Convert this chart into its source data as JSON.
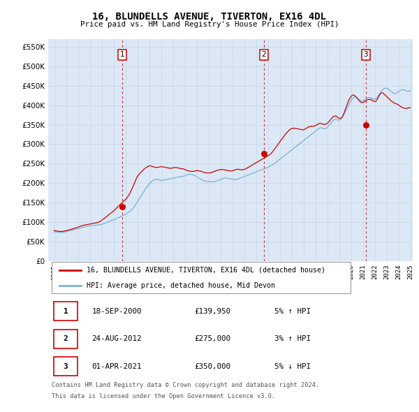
{
  "title": "16, BLUNDELLS AVENUE, TIVERTON, EX16 4DL",
  "subtitle": "Price paid vs. HM Land Registry's House Price Index (HPI)",
  "ylabel_values": [
    0,
    50000,
    100000,
    150000,
    200000,
    250000,
    300000,
    350000,
    400000,
    450000,
    500000,
    550000
  ],
  "ylim": [
    0,
    570000
  ],
  "x_start_year": 1995,
  "x_end_year": 2025,
  "grid_color": "#c8d8e8",
  "plot_bg_color": "#dce8f5",
  "fig_bg_color": "#ffffff",
  "hpi_line_color": "#7ab0d8",
  "price_line_color": "#cc0000",
  "legend1_label": "16, BLUNDELLS AVENUE, TIVERTON, EX16 4DL (detached house)",
  "legend2_label": "HPI: Average price, detached house, Mid Devon",
  "sales": [
    {
      "num": 1,
      "date": "18-SEP-2000",
      "price": 139950,
      "hpi_pct": "5% ↑ HPI",
      "year": 2000.72
    },
    {
      "num": 2,
      "date": "24-AUG-2012",
      "price": 275000,
      "hpi_pct": "3% ↑ HPI",
      "year": 2012.65
    },
    {
      "num": 3,
      "date": "01-APR-2021",
      "price": 350000,
      "hpi_pct": "5% ↓ HPI",
      "year": 2021.25
    }
  ],
  "footer_line1": "Contains HM Land Registry data © Crown copyright and database right 2024.",
  "footer_line2": "This data is licensed under the Open Government Licence v3.0.",
  "hpi_data_months": {
    "start_year": 1995,
    "start_month": 1,
    "values": [
      75000,
      74500,
      74200,
      74000,
      73800,
      73600,
      73400,
      73200,
      73000,
      73200,
      73800,
      74200,
      75000,
      75500,
      76000,
      76800,
      77500,
      78200,
      78800,
      79500,
      80200,
      80800,
      81200,
      81800,
      82500,
      83200,
      84000,
      84800,
      85500,
      86200,
      87000,
      87500,
      88000,
      88500,
      89000,
      89500,
      90000,
      90200,
      90500,
      90800,
      91000,
      91200,
      91500,
      91800,
      92000,
      92300,
      92700,
      93200,
      93800,
      94500,
      95500,
      96500,
      97500,
      98500,
      99500,
      100500,
      101500,
      102500,
      103500,
      104500,
      105000,
      106000,
      107200,
      108500,
      109800,
      111000,
      112200,
      113500,
      114800,
      116000,
      117200,
      118500,
      120000,
      121500,
      123000,
      124500,
      126000,
      128000,
      130500,
      133000,
      136000,
      139500,
      143000,
      147000,
      151000,
      155000,
      159000,
      163000,
      167000,
      171000,
      175000,
      179000,
      183000,
      187000,
      190500,
      194000,
      197000,
      200000,
      202500,
      205000,
      207000,
      208500,
      209500,
      210000,
      210000,
      209500,
      208500,
      207500,
      207000,
      207200,
      207500,
      208000,
      208500,
      209000,
      209500,
      210000,
      210500,
      211000,
      211500,
      212000,
      212500,
      213000,
      213500,
      214000,
      214500,
      215000,
      215500,
      216000,
      216500,
      217000,
      217500,
      218000,
      218500,
      219500,
      220500,
      221500,
      222500,
      223000,
      222500,
      222000,
      221000,
      220000,
      219000,
      218000,
      216500,
      215000,
      213500,
      212000,
      210500,
      209000,
      207500,
      206000,
      205000,
      204500,
      204000,
      203800,
      203500,
      203200,
      203000,
      203000,
      203200,
      203500,
      204000,
      204500,
      205000,
      206000,
      207000,
      208000,
      209000,
      210000,
      211000,
      212000,
      213000,
      213500,
      213000,
      212500,
      212000,
      211500,
      211000,
      210500,
      210000,
      209500,
      209000,
      209000,
      209500,
      210000,
      210500,
      211500,
      212500,
      213500,
      214500,
      215500,
      216500,
      217500,
      218500,
      219500,
      220500,
      221500,
      222500,
      223500,
      224500,
      225500,
      226500,
      227500,
      228500,
      229500,
      230500,
      231500,
      232500,
      233500,
      234500,
      235500,
      236500,
      237500,
      238500,
      239500,
      240500,
      241500,
      243000,
      244500,
      246000,
      247500,
      249000,
      251000,
      253000,
      255000,
      257000,
      259000,
      261000,
      263000,
      265000,
      267000,
      269000,
      271000,
      273000,
      275000,
      277000,
      279000,
      281000,
      283000,
      285000,
      287000,
      289000,
      291000,
      293000,
      295000,
      297000,
      299000,
      301000,
      303000,
      305000,
      307000,
      309000,
      311000,
      313000,
      315000,
      317000,
      319000,
      321000,
      323000,
      325000,
      327000,
      329000,
      331000,
      333000,
      335000,
      337000,
      339000,
      341000,
      342000,
      342000,
      341000,
      340000,
      339500,
      340000,
      341000,
      343000,
      346000,
      349000,
      352000,
      355000,
      358000,
      361000,
      363000,
      364000,
      364000,
      363000,
      362000,
      362000,
      363000,
      365000,
      368000,
      372000,
      377000,
      382000,
      387000,
      392000,
      397000,
      402000,
      407000,
      412000,
      416000,
      419000,
      421000,
      422000,
      421000,
      419000,
      417000,
      415000,
      413000,
      412000,
      411000,
      411000,
      412000,
      414000,
      416000,
      418000,
      419000,
      420000,
      420000,
      419000,
      418000,
      417000,
      416000,
      416000,
      417000,
      419000,
      422000,
      426000,
      430000,
      434000,
      437000,
      440000,
      442000,
      443000,
      444000,
      444000,
      443000,
      441000,
      439000,
      437000,
      435000,
      433000,
      431000,
      430000,
      430000,
      431000,
      433000,
      435000,
      437000,
      438000,
      439000,
      440000,
      440000,
      439000,
      438000,
      437000,
      436000,
      436000,
      437000,
      438000
    ]
  },
  "price_data_months": {
    "start_year": 1995,
    "start_month": 1,
    "values": [
      78000,
      77500,
      77000,
      76500,
      76000,
      75800,
      75600,
      75500,
      75600,
      76000,
      76500,
      77000,
      77500,
      78000,
      78800,
      79500,
      80200,
      81000,
      81800,
      82500,
      83200,
      84000,
      84800,
      85500,
      86500,
      87500,
      88500,
      89500,
      90500,
      91000,
      91500,
      92000,
      92500,
      93000,
      93500,
      94000,
      94500,
      95000,
      95500,
      96000,
      96500,
      97000,
      97500,
      98000,
      98800,
      99800,
      101000,
      102500,
      104000,
      106000,
      108000,
      110000,
      112000,
      114000,
      116000,
      118000,
      120000,
      122000,
      124000,
      126000,
      128000,
      130500,
      133000,
      135500,
      138000,
      140500,
      143000,
      145500,
      148000,
      150500,
      153000,
      155500,
      157000,
      160000,
      163500,
      167000,
      171000,
      176000,
      181500,
      187000,
      193000,
      199000,
      205000,
      211000,
      216000,
      220000,
      223000,
      226000,
      228500,
      231000,
      233500,
      236000,
      238000,
      240000,
      241500,
      243000,
      244000,
      244500,
      244000,
      243000,
      242000,
      241000,
      240500,
      240000,
      240000,
      240500,
      241000,
      241500,
      242000,
      242000,
      241500,
      241000,
      240500,
      240000,
      239500,
      239000,
      238500,
      238000,
      238000,
      238500,
      239000,
      239500,
      240000,
      240000,
      239500,
      239000,
      238500,
      238000,
      237500,
      237000,
      236500,
      236000,
      235000,
      234000,
      233000,
      232000,
      231000,
      230500,
      230000,
      230000,
      230000,
      230500,
      231000,
      231500,
      232000,
      232000,
      231500,
      231000,
      230500,
      230000,
      229000,
      228000,
      227000,
      226500,
      226000,
      226000,
      226000,
      226000,
      226500,
      227000,
      228000,
      229000,
      230000,
      231000,
      232000,
      233000,
      233500,
      234000,
      234500,
      235000,
      235000,
      234500,
      234000,
      233500,
      233000,
      232500,
      232000,
      231500,
      231000,
      231000,
      231500,
      232000,
      233000,
      234000,
      235000,
      235500,
      235500,
      235000,
      234500,
      234000,
      234000,
      234500,
      235000,
      236000,
      237000,
      238500,
      240000,
      241500,
      243000,
      244500,
      246000,
      247500,
      249000,
      250500,
      252000,
      253500,
      255000,
      256500,
      258000,
      259500,
      261000,
      262500,
      264000,
      265500,
      267000,
      268500,
      270000,
      271500,
      273500,
      275500,
      278000,
      281000,
      284500,
      288000,
      291500,
      295000,
      298500,
      302000,
      305500,
      309000,
      312500,
      316000,
      319500,
      323000,
      326000,
      329000,
      332000,
      334500,
      337000,
      339000,
      340000,
      340500,
      341000,
      341000,
      340500,
      340000,
      339500,
      339000,
      338500,
      338000,
      337500,
      337000,
      337000,
      338000,
      339500,
      341000,
      342500,
      344000,
      345000,
      345500,
      346000,
      346000,
      346000,
      346500,
      347500,
      349000,
      350500,
      352000,
      353000,
      353500,
      353000,
      352000,
      351000,
      350500,
      351000,
      352000,
      353500,
      356000,
      359000,
      362000,
      365000,
      368000,
      370500,
      372000,
      372500,
      372000,
      370000,
      368000,
      366500,
      366000,
      367000,
      369500,
      374000,
      380000,
      387000,
      394500,
      401500,
      408000,
      413500,
      418000,
      422000,
      425000,
      426500,
      426000,
      424500,
      422000,
      419000,
      416000,
      413000,
      410000,
      408000,
      407000,
      407000,
      408000,
      410000,
      412000,
      413500,
      414500,
      415000,
      415000,
      414500,
      413500,
      412000,
      410500,
      409500,
      410000,
      413000,
      417500,
      422500,
      427000,
      430500,
      432000,
      432000,
      430000,
      427500,
      425000,
      422500,
      420000,
      418000,
      415500,
      413000,
      410500,
      408500,
      407000,
      405500,
      404500,
      403500,
      402500,
      401000,
      399000,
      397000,
      395500,
      394000,
      393000,
      392500,
      392000,
      392000,
      392500,
      393000,
      393500,
      394000
    ]
  }
}
